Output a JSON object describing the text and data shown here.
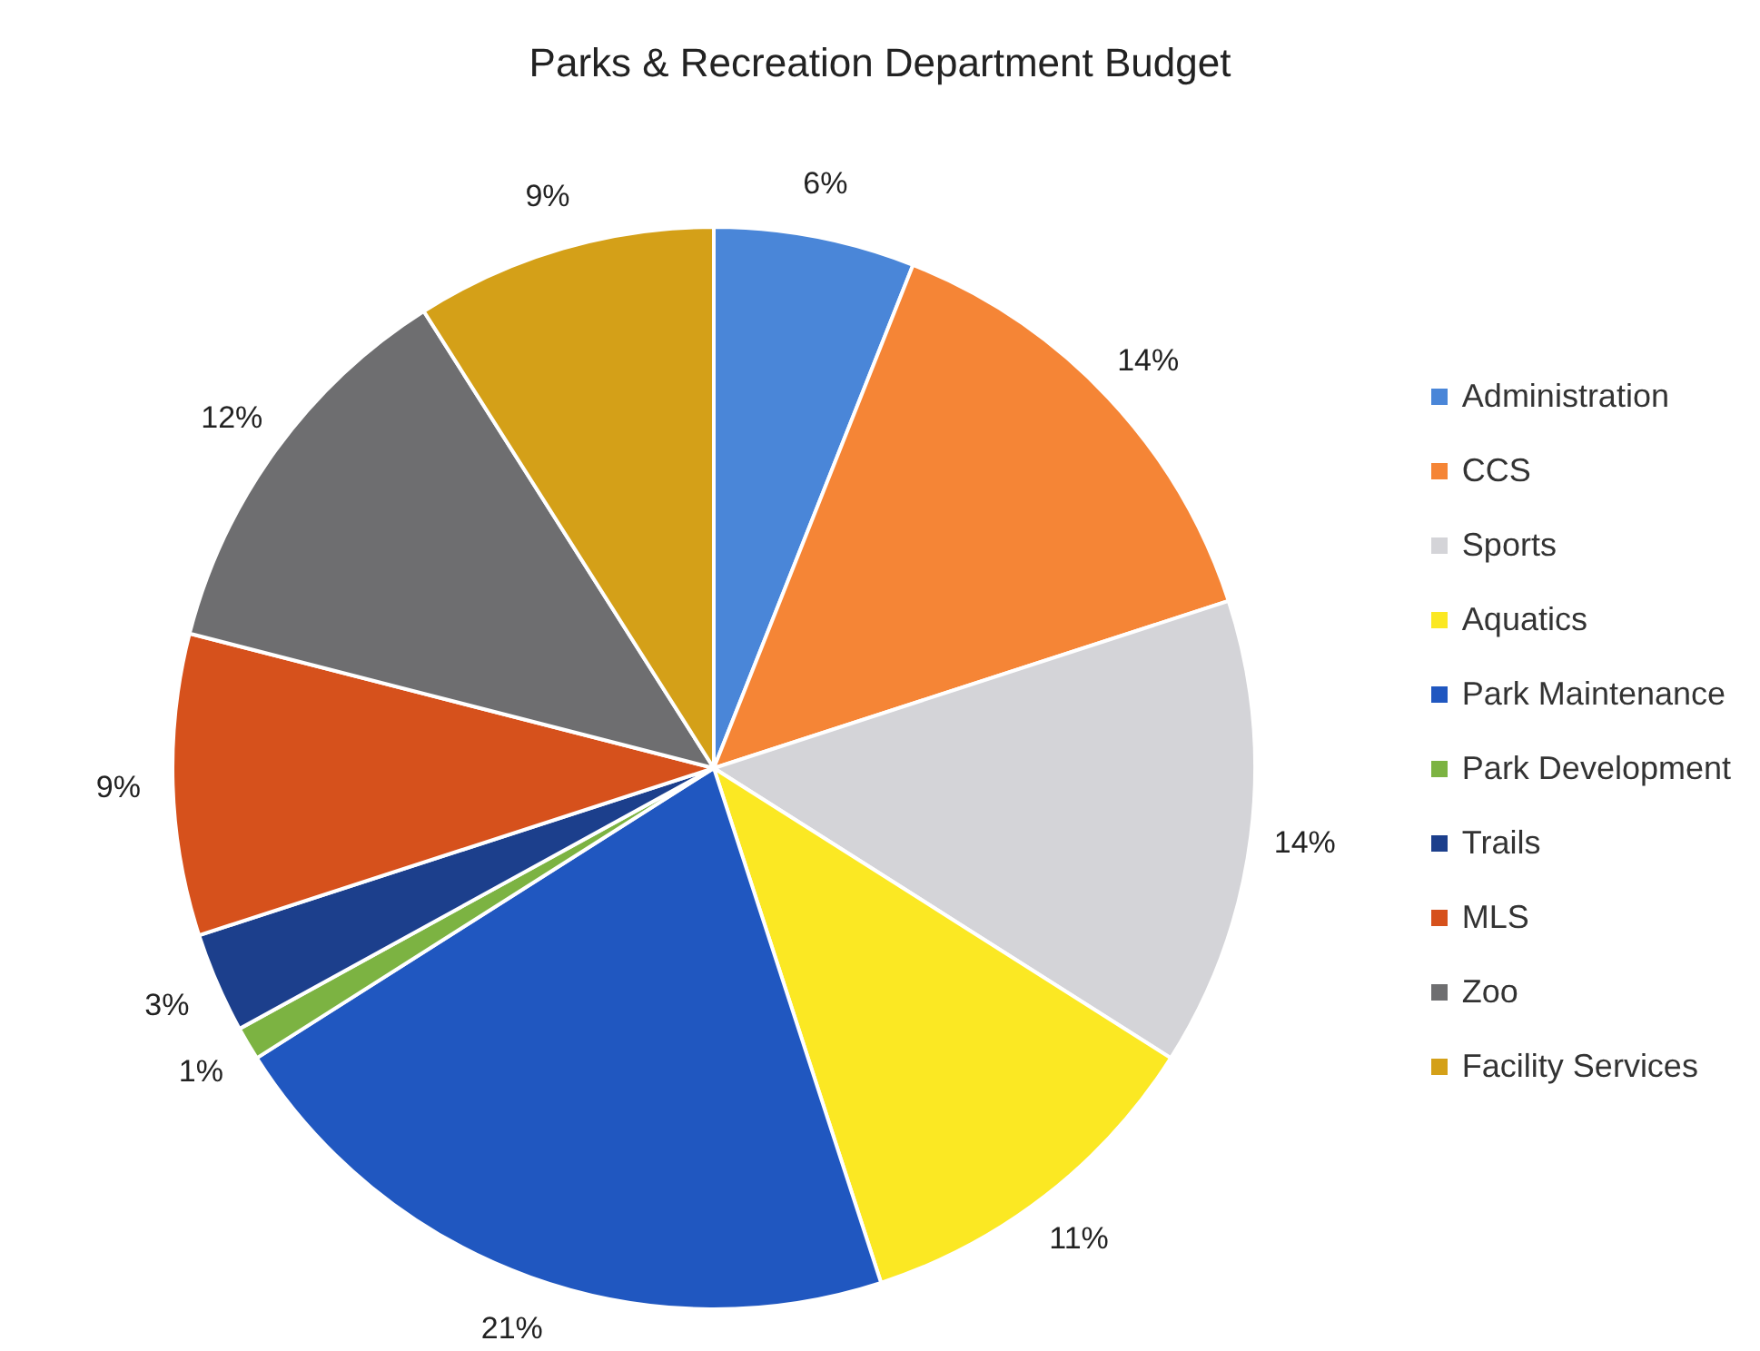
{
  "chart_data": {
    "type": "pie",
    "title": "Parks & Recreation Department Budget",
    "categories": [
      "Administration",
      "CCS",
      "Sports",
      "Aquatics",
      "Park Maintenance",
      "Park Development",
      "Trails",
      "MLS",
      "Zoo",
      "Facility Services"
    ],
    "values": [
      6,
      14,
      14,
      11,
      21,
      1,
      3,
      9,
      12,
      9
    ],
    "value_labels": [
      "6%",
      "14%",
      "14%",
      "11%",
      "21%",
      "1%",
      "3%",
      "9%",
      "12%",
      "9%"
    ],
    "colors": [
      "#4a86d8",
      "#f58536",
      "#d4d4d8",
      "#fbe823",
      "#2057c0",
      "#7cb342",
      "#1c3f8c",
      "#d6511c",
      "#6e6e70",
      "#d4a018"
    ],
    "legend": "right"
  }
}
